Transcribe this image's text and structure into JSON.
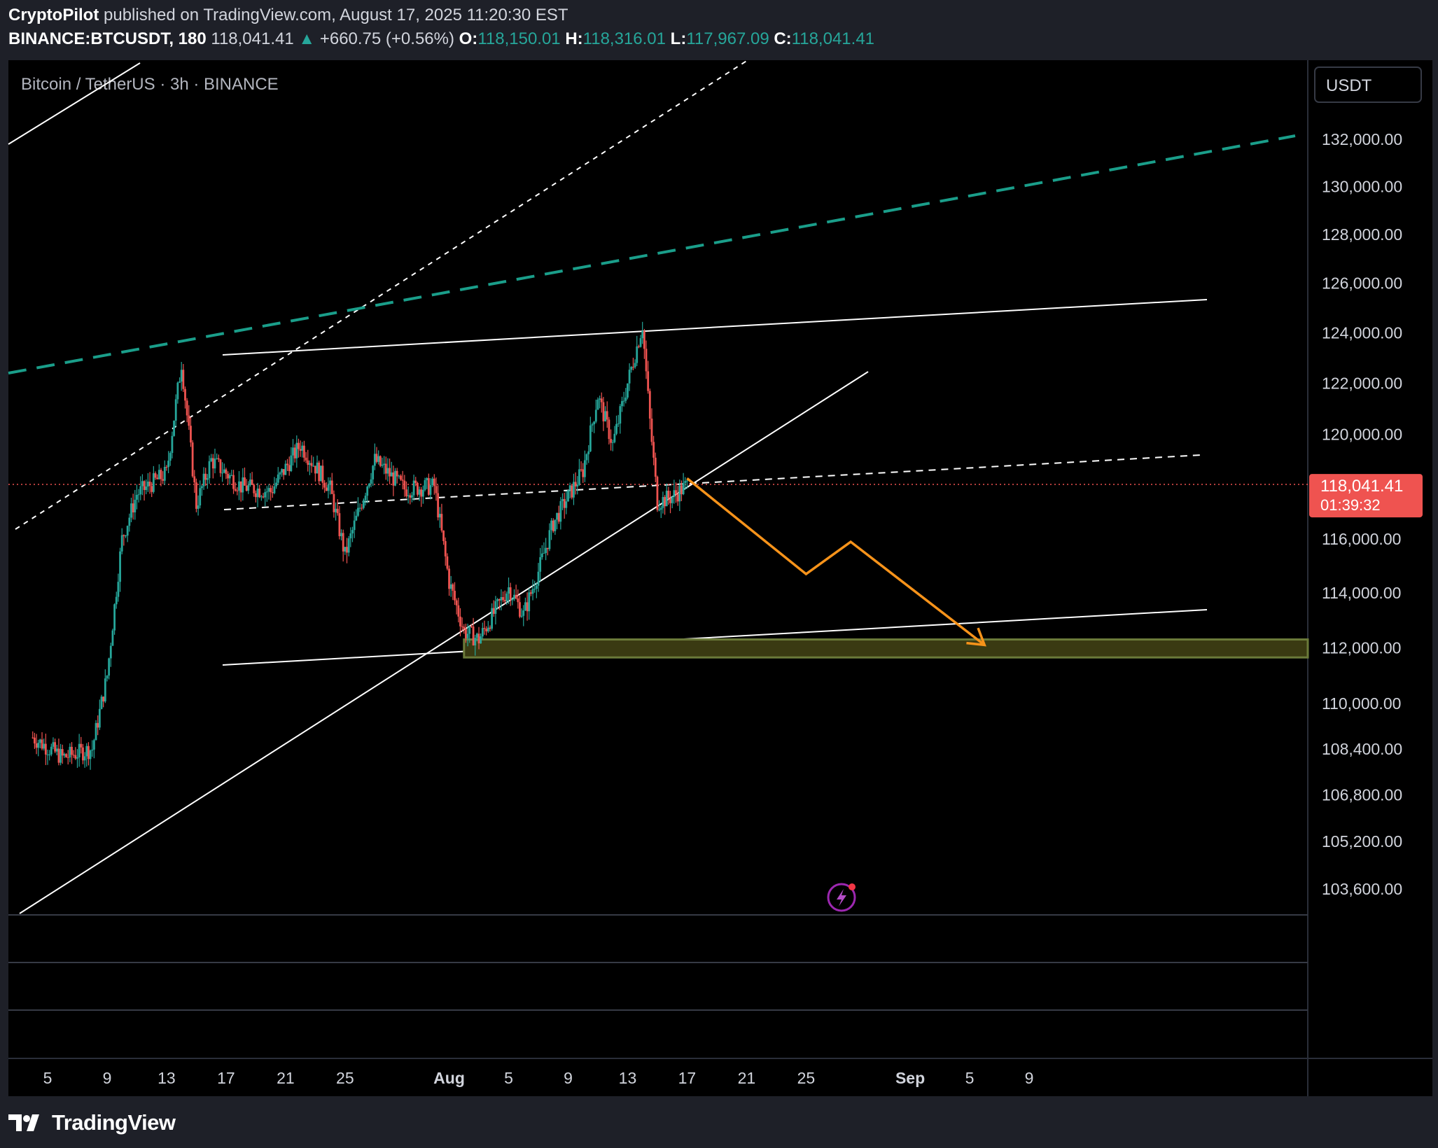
{
  "header": {
    "author": "CryptoPilot",
    "published_text": "published on TradingView.com, August 17, 2025 11:20:30 EST",
    "symbol": "BINANCE:BTCUSDT, 180",
    "last": "118,041.41",
    "change": "+660.75 (+0.56%)",
    "o_label": "O:",
    "o_value": "118,150.01",
    "h_label": "H:",
    "h_value": "118,316.01",
    "l_label": "L:",
    "l_value": "117,967.09",
    "c_label": "C:",
    "c_value": "118,041.41"
  },
  "chart_title": "Bitcoin / TetherUS · 3h · BINANCE",
  "currency_button": "USDT",
  "brand": "TradingView",
  "price_tag": {
    "price": "118,041.41",
    "countdown": "01:39:32"
  },
  "colors": {
    "background": "#000000",
    "up": "#26a69a",
    "down": "#ef5350",
    "projection": "#f7931a",
    "zone_fill": "#3a3a12",
    "zone_border": "#6b7a3a",
    "channel_dash": "#1a9e8a",
    "price_line": "#ef5350"
  },
  "chart_data": {
    "type": "candlestick",
    "y_axis_ticks": [
      "132,000.00",
      "130,000.00",
      "128,000.00",
      "126,000.00",
      "124,000.00",
      "122,000.00",
      "120,000.00",
      "116,000.00",
      "114,000.00",
      "112,000.00",
      "110,000.00",
      "108,400.00",
      "106,800.00",
      "105,200.00",
      "103,600.00"
    ],
    "y_axis_scale": "log",
    "x_axis_ticks": [
      "5",
      "9",
      "13",
      "17",
      "21",
      "25",
      "Aug",
      "5",
      "9",
      "13",
      "17",
      "21",
      "25",
      "Sep",
      "5",
      "9"
    ],
    "x_range": [
      "2025-07-04",
      "2025-09-11"
    ],
    "interval": "3h",
    "approx_daily_path": [
      {
        "date": "2025-07-04",
        "close": 108800
      },
      {
        "date": "2025-07-06",
        "close": 108100
      },
      {
        "date": "2025-07-08",
        "close": 108400
      },
      {
        "date": "2025-07-09",
        "close": 111000
      },
      {
        "date": "2025-07-10",
        "close": 116000
      },
      {
        "date": "2025-07-11",
        "close": 117700
      },
      {
        "date": "2025-07-13",
        "close": 118500
      },
      {
        "date": "2025-07-14",
        "close": 122800
      },
      {
        "date": "2025-07-15",
        "close": 117300
      },
      {
        "date": "2025-07-16",
        "close": 119000
      },
      {
        "date": "2025-07-18",
        "close": 118000
      },
      {
        "date": "2025-07-20",
        "close": 117800
      },
      {
        "date": "2025-07-22",
        "close": 119600
      },
      {
        "date": "2025-07-24",
        "close": 117900
      },
      {
        "date": "2025-07-25",
        "close": 115400
      },
      {
        "date": "2025-07-27",
        "close": 119000
      },
      {
        "date": "2025-07-29",
        "close": 117900
      },
      {
        "date": "2025-07-31",
        "close": 118000
      },
      {
        "date": "2025-08-01",
        "close": 114400
      },
      {
        "date": "2025-08-02",
        "close": 112600
      },
      {
        "date": "2025-08-03",
        "close": 112300
      },
      {
        "date": "2025-08-05",
        "close": 114200
      },
      {
        "date": "2025-08-06",
        "close": 113200
      },
      {
        "date": "2025-08-07",
        "close": 114800
      },
      {
        "date": "2025-08-08",
        "close": 116600
      },
      {
        "date": "2025-08-10",
        "close": 118600
      },
      {
        "date": "2025-08-11",
        "close": 121500
      },
      {
        "date": "2025-08-12",
        "close": 119600
      },
      {
        "date": "2025-08-13",
        "close": 122000
      },
      {
        "date": "2025-08-14",
        "close": 124300
      },
      {
        "date": "2025-08-14",
        "close": 120500
      },
      {
        "date": "2025-08-15",
        "close": 117400
      },
      {
        "date": "2025-08-16",
        "close": 117600
      },
      {
        "date": "2025-08-17",
        "close": 118041.41
      }
    ],
    "support_zone": {
      "from_date": "2025-08-02",
      "low": 111650,
      "high": 112300
    },
    "projection_path": [
      {
        "date": "2025-08-17",
        "price": 118300
      },
      {
        "date": "2025-08-25",
        "price": 114700
      },
      {
        "date": "2025-08-28",
        "price": 115900
      },
      {
        "date": "2025-09-06",
        "price": 112100
      }
    ]
  }
}
